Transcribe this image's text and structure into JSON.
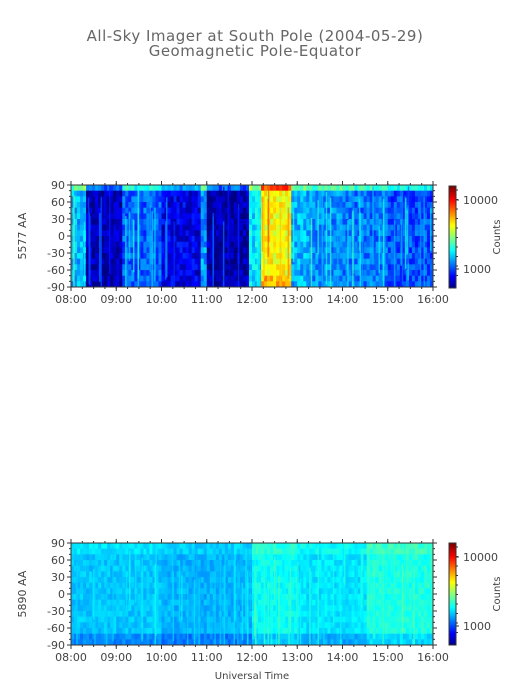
{
  "header": {
    "title": "All-Sky Imager at South Pole (2004-05-29)",
    "subtitle": "Geomagnetic Pole-Equator"
  },
  "chart_data": [
    {
      "type": "heatmap",
      "ylabel": "5577 AA",
      "xlabel": "",
      "x_ticks": [
        "08:00",
        "09:00",
        "10:00",
        "11:00",
        "12:00",
        "13:00",
        "14:00",
        "15:00",
        "16:00"
      ],
      "y_ticks": [
        "90",
        "60",
        "30",
        "0",
        "-30",
        "-60",
        "-90"
      ],
      "xlim": [
        "08:00",
        "16:00"
      ],
      "ylim": [
        -90,
        90
      ],
      "colorbar": {
        "label": "Counts",
        "scale": "log",
        "ticks": [
          "10000",
          "1000"
        ]
      },
      "bands": [
        {
          "t_start": "08:00",
          "t_end": "08:20",
          "level": 0.3
        },
        {
          "t_start": "08:20",
          "t_end": "09:05",
          "level": 0.05
        },
        {
          "t_start": "09:05",
          "t_end": "10:00",
          "level": 0.22
        },
        {
          "t_start": "10:00",
          "t_end": "10:50",
          "level": 0.1
        },
        {
          "t_start": "10:50",
          "t_end": "11:00",
          "level": 0.28
        },
        {
          "t_start": "11:00",
          "t_end": "11:55",
          "level": 0.04
        },
        {
          "t_start": "11:55",
          "t_end": "12:10",
          "level": 0.35
        },
        {
          "t_start": "12:10",
          "t_end": "12:50",
          "level": 0.62
        },
        {
          "t_start": "12:50",
          "t_end": "13:20",
          "level": 0.3
        },
        {
          "t_start": "13:20",
          "t_end": "14:00",
          "level": 0.26
        },
        {
          "t_start": "14:00",
          "t_end": "15:00",
          "level": 0.24
        },
        {
          "t_start": "15:00",
          "t_end": "16:00",
          "level": 0.2
        }
      ]
    },
    {
      "type": "heatmap",
      "ylabel": "5890 AA",
      "xlabel": "Universal Time",
      "x_ticks": [
        "08:00",
        "09:00",
        "10:00",
        "11:00",
        "12:00",
        "13:00",
        "14:00",
        "15:00",
        "16:00"
      ],
      "y_ticks": [
        "90",
        "60",
        "30",
        "0",
        "-30",
        "-60",
        "-90"
      ],
      "xlim": [
        "08:00",
        "16:00"
      ],
      "ylim": [
        -90,
        90
      ],
      "colorbar": {
        "label": "Counts",
        "scale": "log",
        "ticks": [
          "10000",
          "1000"
        ]
      },
      "bands": [
        {
          "t_start": "08:00",
          "t_end": "10:00",
          "level": 0.32
        },
        {
          "t_start": "10:00",
          "t_end": "12:00",
          "level": 0.3
        },
        {
          "t_start": "12:00",
          "t_end": "13:00",
          "level": 0.38
        },
        {
          "t_start": "13:00",
          "t_end": "14:30",
          "level": 0.35
        },
        {
          "t_start": "14:30",
          "t_end": "16:00",
          "level": 0.4
        }
      ]
    }
  ]
}
